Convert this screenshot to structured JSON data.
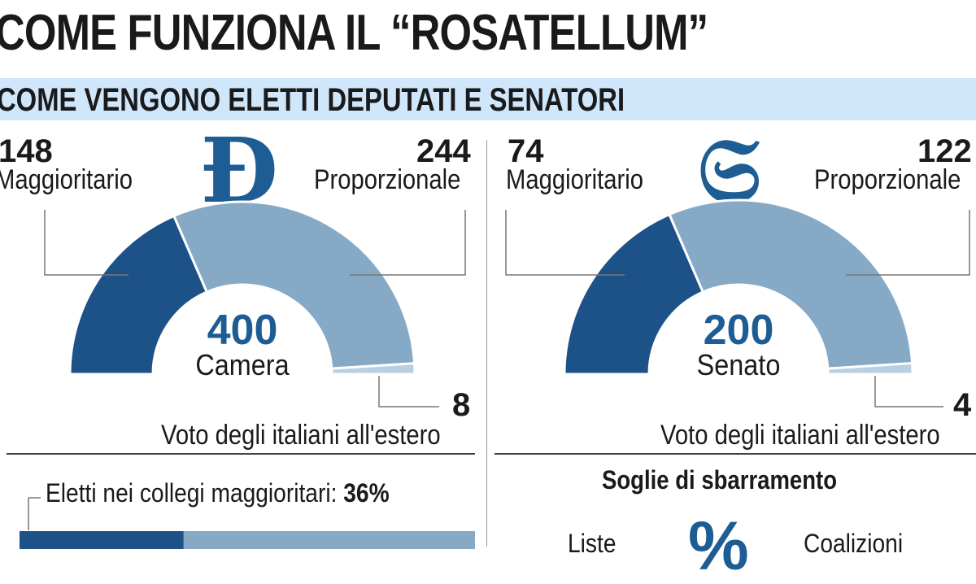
{
  "title": "COME FUNZIONA IL “ROSATELLUM”",
  "subtitle": "COME VENGONO ELETTI DEPUTATI E SENATORI",
  "chart_data": [
    {
      "type": "pie",
      "center_value": "400",
      "center_label": "Camera",
      "emblem": "Camera dei Deputati monogram",
      "slices": [
        {
          "name": "Maggioritario",
          "value": 148,
          "label": "148",
          "color": "#1d5288"
        },
        {
          "name": "Proporzionale",
          "value": 244,
          "label": "244",
          "color": "#86a9c6"
        },
        {
          "name": "Voto degli italiani all'estero",
          "value": 8,
          "label": "8",
          "color": "#b9cfe2"
        }
      ]
    },
    {
      "type": "pie",
      "center_value": "200",
      "center_label": "Senato",
      "emblem": "Senato della Repubblica monogram",
      "slices": [
        {
          "name": "Maggioritario",
          "value": 74,
          "label": "74",
          "color": "#1d5288"
        },
        {
          "name": "Proporzionale",
          "value": 122,
          "label": "122",
          "color": "#86a9c6"
        },
        {
          "name": "Voto degli italiani all'estero",
          "value": 4,
          "label": "4",
          "color": "#b9cfe2"
        }
      ]
    }
  ],
  "bottom": {
    "elected_label": "Eletti nei collegi maggioritari:",
    "elected_pct": "36%",
    "elected_value": 36,
    "thresholds_title": "Soglie di sbarramento",
    "liste_label": "Liste",
    "coalizioni_label": "Coalizioni",
    "percent_glyph": "%"
  },
  "colors": {
    "dark": "#1d5288",
    "light": "#86a9c6",
    "pale": "#b9cfe2",
    "band": "#cfe6fb"
  }
}
